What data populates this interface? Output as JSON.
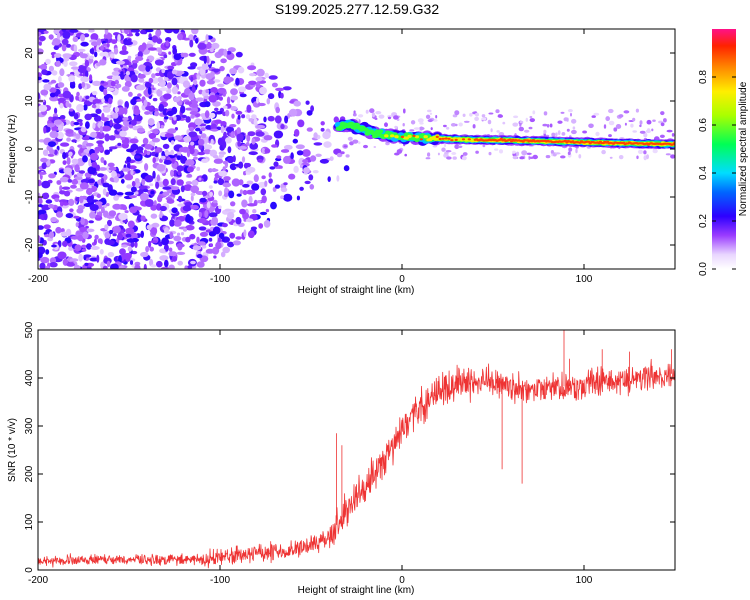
{
  "title": "S199.2025.277.12.59.G32",
  "chart_data": [
    {
      "type": "heatmap",
      "xlabel": "Height of straight line (km)",
      "ylabel": "Frequency (Hz)",
      "xlim": [
        -200,
        150
      ],
      "ylim": [
        -25,
        25
      ],
      "xticks": [
        -200,
        -100,
        0,
        100
      ],
      "yticks": [
        -20,
        -10,
        0,
        10,
        20
      ],
      "colorbar": {
        "label": "Normalized spectral amplitude",
        "ticks": [
          "0.0",
          "0.2",
          "0.4",
          "0.6",
          "0.8"
        ],
        "range": [
          0,
          1
        ]
      },
      "features": {
        "noise_region_x": [
          -200,
          -40
        ],
        "noise_fade_x": [
          -110,
          -40
        ],
        "onset_x": -35,
        "ridge": [
          [
            -35,
            4.5
          ],
          [
            -30,
            5.0
          ],
          [
            -20,
            4.0
          ],
          [
            -10,
            3.0
          ],
          [
            0,
            2.5
          ],
          [
            10,
            2.3
          ],
          [
            30,
            2.0
          ],
          [
            60,
            1.8
          ],
          [
            90,
            1.5
          ],
          [
            120,
            1.2
          ],
          [
            150,
            1.0
          ]
        ]
      }
    },
    {
      "type": "line",
      "xlabel": "Height of straight line (km)",
      "ylabel": "SNR (10 * v/v)",
      "xlim": [
        -200,
        150
      ],
      "ylim": [
        0,
        500
      ],
      "xticks": [
        -200,
        -100,
        0,
        100
      ],
      "yticks": [
        0,
        100,
        200,
        300,
        400,
        500
      ],
      "series": [
        {
          "name": "SNR",
          "color": "#ee3333",
          "trend": [
            [
              -200,
              20
            ],
            [
              -110,
              22
            ],
            [
              -100,
              28
            ],
            [
              -80,
              35
            ],
            [
              -60,
              40
            ],
            [
              -50,
              50
            ],
            [
              -40,
              70
            ],
            [
              -35,
              100
            ],
            [
              -25,
              150
            ],
            [
              -15,
              200
            ],
            [
              -5,
              260
            ],
            [
              5,
              320
            ],
            [
              15,
              360
            ],
            [
              25,
              380
            ],
            [
              35,
              390
            ],
            [
              45,
              395
            ],
            [
              60,
              385
            ],
            [
              70,
              370
            ],
            [
              80,
              380
            ],
            [
              100,
              385
            ],
            [
              120,
              390
            ],
            [
              150,
              410
            ]
          ],
          "spikes": [
            [
              -36,
              285
            ],
            [
              -33,
              260
            ],
            [
              8,
              330
            ],
            [
              55,
              210
            ],
            [
              66,
              180
            ],
            [
              89,
              505
            ],
            [
              92,
              440
            ],
            [
              110,
              460
            ],
            [
              125,
              455
            ],
            [
              148,
              460
            ]
          ]
        }
      ]
    }
  ]
}
